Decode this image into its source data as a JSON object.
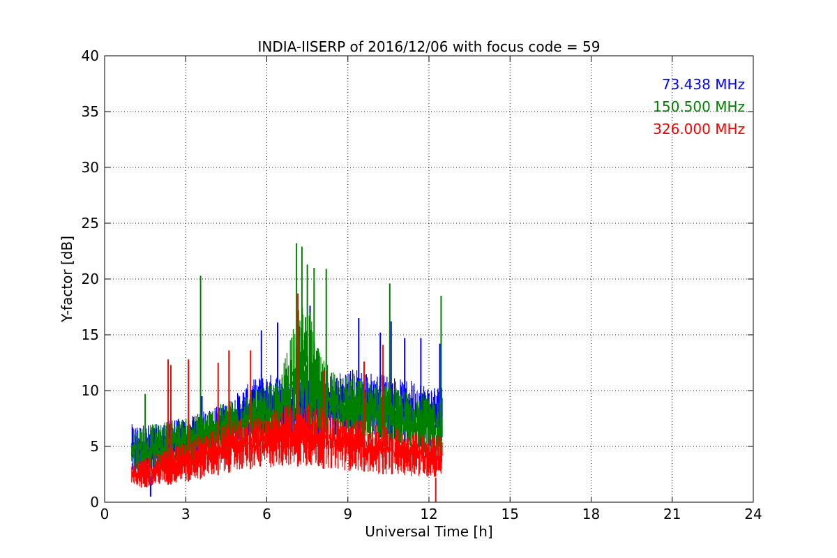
{
  "chart_data": {
    "type": "line",
    "title": "INDIA-IISERP of 2016/12/06 with focus code = 59",
    "xlabel": "Universal Time [h]",
    "ylabel": "Y-factor [dB]",
    "xlim": [
      0,
      24
    ],
    "ylim": [
      0,
      40
    ],
    "xticks": [
      0,
      3,
      6,
      9,
      12,
      15,
      18,
      21,
      24
    ],
    "yticks": [
      0,
      5,
      10,
      15,
      20,
      25,
      30,
      35,
      40
    ],
    "grid": true,
    "legend_position": "top-right",
    "x_start": 1.0,
    "x_end": 12.5,
    "series": [
      {
        "name": "73.438 MHz",
        "color": "#0000ff",
        "x": [
          1.0,
          1.5,
          2.0,
          2.5,
          3.0,
          3.5,
          4.0,
          4.5,
          5.0,
          5.5,
          6.0,
          6.5,
          7.0,
          7.5,
          8.0,
          8.5,
          9.0,
          9.5,
          10.0,
          10.5,
          11.0,
          11.5,
          12.0,
          12.5
        ],
        "low": [
          2.5,
          2.2,
          2.5,
          3.0,
          3.5,
          4.0,
          4.5,
          5.0,
          5.5,
          5.5,
          6.0,
          6.0,
          6.0,
          6.0,
          6.0,
          6.0,
          6.0,
          6.0,
          6.0,
          5.5,
          5.5,
          5.0,
          5.0,
          5.0
        ],
        "high": [
          7.0,
          7.0,
          7.0,
          7.5,
          7.5,
          8.0,
          8.5,
          9.0,
          10.0,
          11.0,
          11.5,
          11.5,
          11.0,
          11.0,
          11.0,
          11.5,
          12.0,
          12.0,
          11.5,
          11.5,
          11.0,
          11.0,
          10.5,
          10.5
        ],
        "spikes": [
          [
            1.7,
            0.5
          ],
          [
            3.6,
            9.5
          ],
          [
            5.8,
            15.4
          ],
          [
            6.4,
            16.1
          ],
          [
            7.6,
            17.6
          ],
          [
            9.4,
            16.5
          ],
          [
            10.2,
            15.2
          ],
          [
            10.6,
            16.2
          ],
          [
            11.1,
            14.7
          ],
          [
            11.7,
            14.7
          ],
          [
            12.4,
            14.2
          ]
        ]
      },
      {
        "name": "150.500 MHz",
        "color": "#008000",
        "x": [
          1.0,
          1.5,
          2.0,
          2.5,
          3.0,
          3.5,
          4.0,
          4.5,
          5.0,
          5.5,
          6.0,
          6.5,
          7.0,
          7.5,
          8.0,
          8.5,
          9.0,
          9.5,
          10.0,
          10.5,
          11.0,
          11.5,
          12.0,
          12.5
        ],
        "low": [
          2.5,
          2.5,
          2.5,
          3.0,
          3.0,
          3.5,
          4.0,
          4.0,
          4.5,
          4.5,
          5.0,
          5.0,
          6.0,
          6.5,
          5.5,
          5.0,
          5.0,
          5.0,
          5.0,
          5.0,
          4.5,
          4.5,
          4.0,
          4.0
        ],
        "high": [
          6.5,
          7.0,
          7.0,
          7.5,
          7.5,
          8.0,
          8.5,
          9.0,
          9.5,
          10.0,
          10.5,
          11.0,
          17.0,
          18.0,
          13.0,
          12.0,
          11.5,
          11.0,
          11.0,
          10.5,
          10.0,
          10.0,
          9.5,
          9.5
        ],
        "spikes": [
          [
            1.5,
            9.7
          ],
          [
            3.55,
            20.3
          ],
          [
            7.1,
            23.2
          ],
          [
            7.3,
            22.9
          ],
          [
            7.5,
            21.3
          ],
          [
            7.75,
            21.0
          ],
          [
            8.2,
            20.9
          ],
          [
            10.55,
            19.6
          ],
          [
            12.45,
            18.5
          ]
        ]
      },
      {
        "name": "326.000 MHz",
        "color": "#ff0000",
        "x": [
          1.0,
          1.5,
          2.0,
          2.5,
          3.0,
          3.5,
          4.0,
          4.5,
          5.0,
          5.5,
          6.0,
          6.5,
          7.0,
          7.5,
          8.0,
          8.5,
          9.0,
          9.5,
          10.0,
          10.5,
          11.0,
          11.5,
          12.0,
          12.5
        ],
        "low": [
          1.2,
          1.3,
          1.5,
          1.6,
          1.8,
          2.0,
          2.3,
          2.6,
          2.8,
          3.0,
          3.0,
          3.2,
          3.2,
          3.2,
          3.0,
          3.0,
          2.8,
          2.8,
          2.5,
          2.5,
          2.4,
          2.3,
          2.2,
          2.2
        ],
        "high": [
          3.5,
          4.0,
          4.5,
          5.0,
          5.5,
          6.0,
          6.5,
          7.0,
          7.5,
          7.5,
          8.0,
          8.5,
          9.0,
          9.0,
          8.5,
          8.0,
          7.5,
          7.5,
          7.0,
          7.0,
          6.5,
          6.5,
          6.0,
          6.0
        ],
        "spikes": [
          [
            2.35,
            12.8
          ],
          [
            2.45,
            12.3
          ],
          [
            3.1,
            12.8
          ],
          [
            4.2,
            12.5
          ],
          [
            4.6,
            13.6
          ],
          [
            5.4,
            13.6
          ],
          [
            7.15,
            18.7
          ],
          [
            8.1,
            11.8
          ],
          [
            9.6,
            12.6
          ],
          [
            10.3,
            14.1
          ],
          [
            12.25,
            0.0
          ]
        ]
      }
    ]
  }
}
